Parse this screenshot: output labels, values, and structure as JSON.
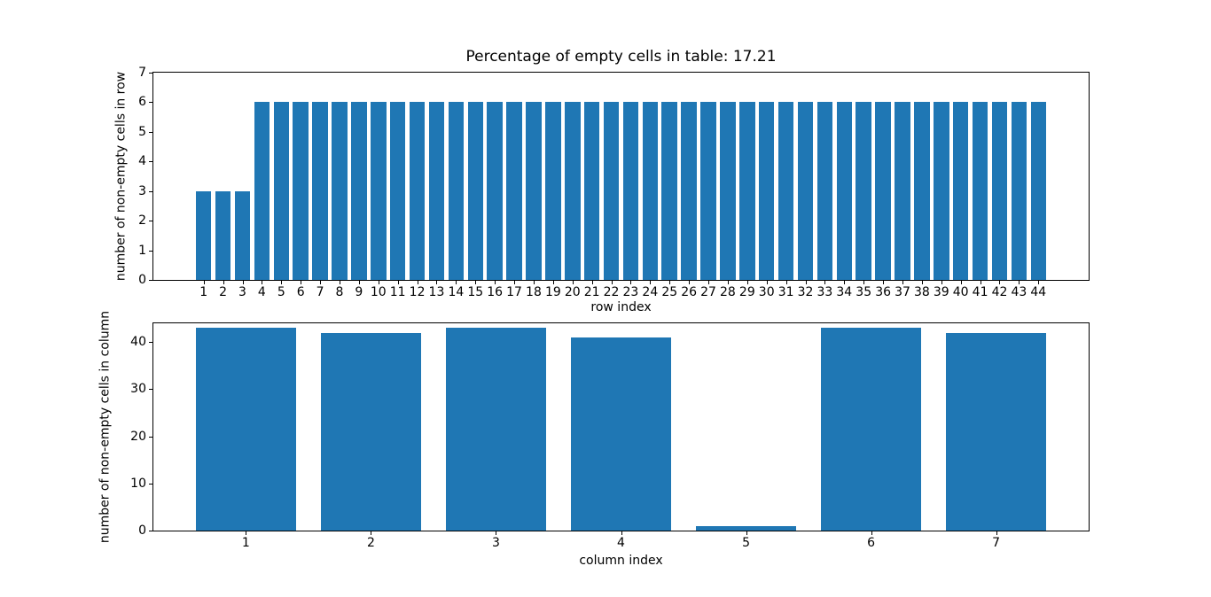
{
  "chart_data": [
    {
      "type": "bar",
      "title": "Percentage of empty cells in table: 17.21",
      "xlabel": "row index",
      "ylabel": "number of non-empty cells in row",
      "categories": [
        1,
        2,
        3,
        4,
        5,
        6,
        7,
        8,
        9,
        10,
        11,
        12,
        13,
        14,
        15,
        16,
        17,
        18,
        19,
        20,
        21,
        22,
        23,
        24,
        25,
        26,
        27,
        28,
        29,
        30,
        31,
        32,
        33,
        34,
        35,
        36,
        37,
        38,
        39,
        40,
        41,
        42,
        43,
        44
      ],
      "values": [
        3,
        3,
        3,
        6,
        6,
        6,
        6,
        6,
        6,
        6,
        6,
        6,
        6,
        6,
        6,
        6,
        6,
        6,
        6,
        6,
        6,
        6,
        6,
        6,
        6,
        6,
        6,
        6,
        6,
        6,
        6,
        6,
        6,
        6,
        6,
        6,
        6,
        6,
        6,
        6,
        6,
        6,
        6,
        6
      ],
      "ylim": [
        0,
        7
      ],
      "yticks": [
        0,
        1,
        2,
        3,
        4,
        5,
        6,
        7
      ],
      "xlim": [
        -1.59,
        46.59
      ],
      "bar_width": 0.8,
      "bar_color": "#1f77b4",
      "grid": false,
      "legend": null
    },
    {
      "type": "bar",
      "title": "",
      "xlabel": "column index",
      "ylabel": "number of non-empty cells in column",
      "categories": [
        1,
        2,
        3,
        4,
        5,
        6,
        7
      ],
      "values": [
        43,
        42,
        43,
        41,
        1,
        43,
        42
      ],
      "ylim": [
        0,
        44
      ],
      "yticks": [
        0,
        10,
        20,
        30,
        40
      ],
      "xlim": [
        0.26,
        7.74
      ],
      "bar_width": 0.8,
      "bar_color": "#1f77b4",
      "grid": false,
      "legend": null
    }
  ]
}
